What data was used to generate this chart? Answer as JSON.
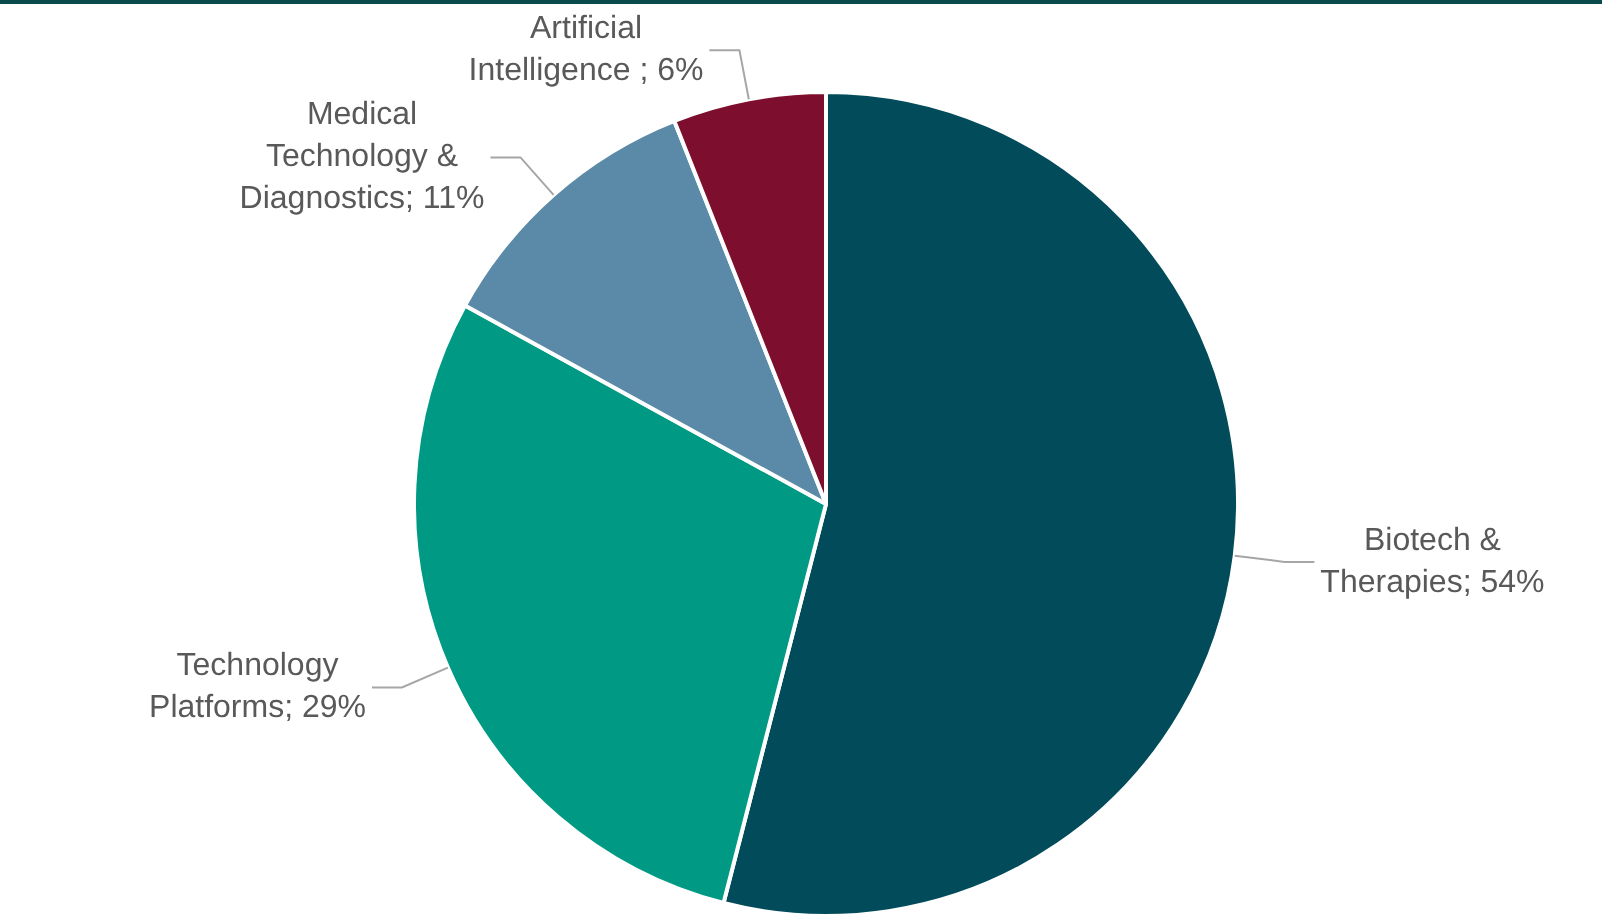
{
  "chart_data": {
    "type": "pie",
    "categories": [
      "Biotech & Therapies",
      "Technology Platforms",
      "Medical Technology & Diagnostics",
      "Artificial Intelligence "
    ],
    "values": [
      54,
      29,
      11,
      6
    ],
    "colors": [
      "#024b5a",
      "#009a84",
      "#5a8aa8",
      "#7d0e2d"
    ],
    "value_labels": [
      "54%",
      "29%",
      "11%",
      "6%"
    ],
    "legend": false
  }
}
